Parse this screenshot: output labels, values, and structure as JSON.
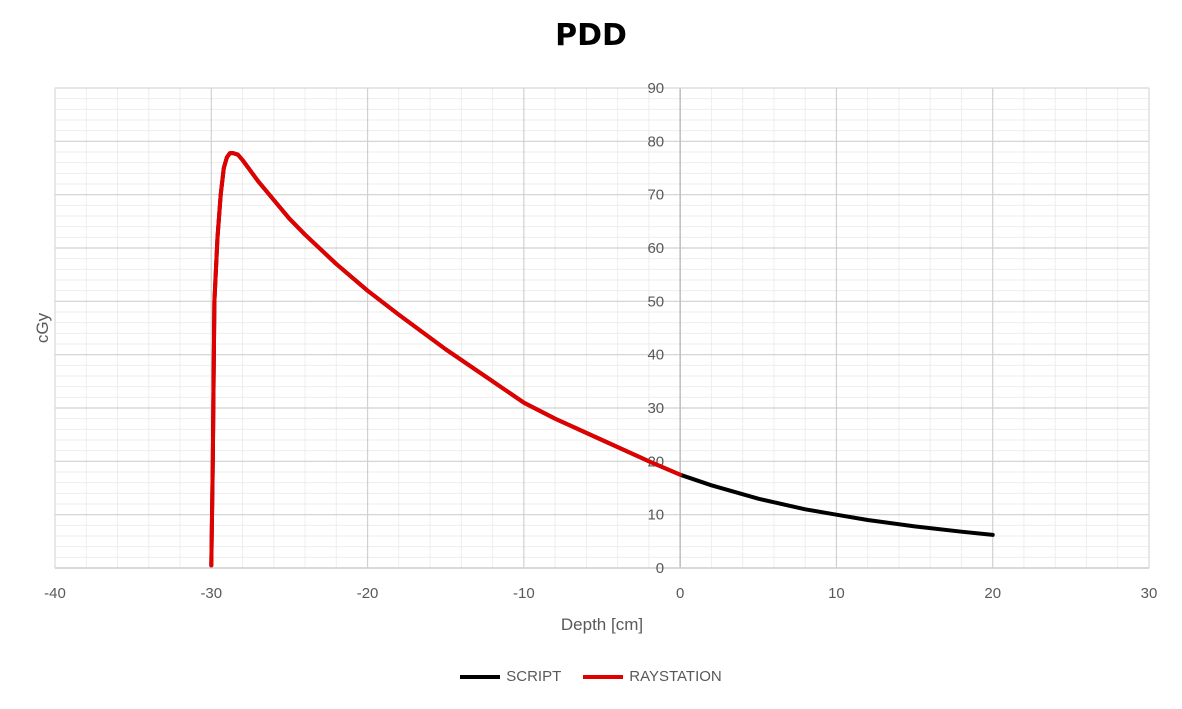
{
  "chart_data": {
    "type": "line",
    "title": "PDD",
    "xlabel": "Depth [cm]",
    "ylabel": "cGy",
    "xlim": [
      -40,
      30
    ],
    "ylim": [
      0,
      90
    ],
    "x_ticks": [
      "-40",
      "-30",
      "-20",
      "-10",
      "0",
      "10",
      "20",
      "30"
    ],
    "y_ticks": [
      "0",
      "10",
      "20",
      "30",
      "40",
      "50",
      "60",
      "70",
      "80",
      "90"
    ],
    "grid": true,
    "legend_position": "bottom",
    "series": [
      {
        "name": "SCRIPT",
        "color": "#000000",
        "x": [
          -30.0,
          -29.9,
          -29.8,
          -29.6,
          -29.4,
          -29.2,
          -29.0,
          -28.8,
          -28.6,
          -28.3,
          -28.0,
          -27.5,
          -27.0,
          -26.0,
          -25.0,
          -24.0,
          -22.0,
          -20.0,
          -18.0,
          -15.0,
          -12.0,
          -10.0,
          -8.0,
          -5.0,
          -2.0,
          0.0,
          2.0,
          5.0,
          8.0,
          10.0,
          12.0,
          15.0,
          18.0,
          20.0
        ],
        "y": [
          0.5,
          20.0,
          50.0,
          62.0,
          70.0,
          75.0,
          77.0,
          77.8,
          77.8,
          77.5,
          76.5,
          74.5,
          72.5,
          69.0,
          65.5,
          62.5,
          57.0,
          52.0,
          47.5,
          41.0,
          35.0,
          31.0,
          28.0,
          24.0,
          20.0,
          17.5,
          15.5,
          13.0,
          11.0,
          10.0,
          9.0,
          7.8,
          6.8,
          6.2
        ]
      },
      {
        "name": "RAYSTATION",
        "color": "#e00000",
        "x": [
          -30.0,
          -29.9,
          -29.8,
          -29.6,
          -29.4,
          -29.2,
          -29.0,
          -28.8,
          -28.6,
          -28.3,
          -28.0,
          -27.5,
          -27.0,
          -26.0,
          -25.0,
          -24.0,
          -22.0,
          -20.0,
          -18.0,
          -15.0,
          -12.0,
          -10.0,
          -8.0,
          -5.0,
          -2.0,
          0.0
        ],
        "y": [
          0.5,
          20.0,
          50.0,
          62.0,
          70.0,
          75.0,
          77.0,
          77.8,
          77.8,
          77.5,
          76.5,
          74.5,
          72.5,
          69.0,
          65.5,
          62.5,
          57.0,
          52.0,
          47.5,
          41.0,
          35.0,
          31.0,
          28.0,
          24.0,
          20.0,
          17.5
        ]
      }
    ]
  }
}
